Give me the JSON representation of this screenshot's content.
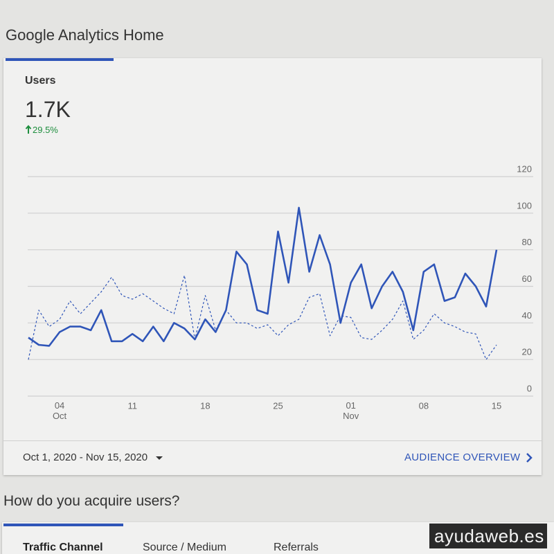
{
  "header": {
    "title": "Google Analytics Home"
  },
  "card": {
    "metric": "Users",
    "value": "1.7K",
    "change": "29.5%",
    "date_range": "Oct 1, 2020 - Nov 15, 2020",
    "link": "AUDIENCE OVERVIEW"
  },
  "chart_data": {
    "type": "line",
    "categories": [
      null,
      null,
      null,
      "04 Oct",
      null,
      null,
      null,
      null,
      null,
      null,
      "11",
      null,
      null,
      null,
      null,
      null,
      null,
      "18",
      null,
      null,
      null,
      null,
      null,
      null,
      "25",
      null,
      null,
      null,
      null,
      null,
      null,
      "01 Nov",
      null,
      null,
      null,
      null,
      null,
      null,
      "08",
      null,
      null,
      null,
      null,
      null,
      null,
      "15"
    ],
    "series": [
      {
        "color": "#2f55b8",
        "style": "solid",
        "values": [
          32,
          28,
          27.5,
          35,
          38,
          38,
          36,
          47,
          30,
          30,
          34,
          30,
          38,
          30,
          40,
          37,
          31,
          42,
          35,
          47,
          79,
          72,
          47,
          45,
          90,
          62,
          103,
          68,
          88,
          72,
          40,
          62,
          72,
          48,
          60,
          68,
          57,
          36,
          68,
          72,
          52,
          54,
          67,
          60,
          49,
          80
        ]
      },
      {
        "color": "#2f55b8",
        "style": "dashed",
        "values": [
          20,
          47,
          38,
          42,
          52,
          45,
          51,
          57,
          65,
          55,
          53,
          56,
          52,
          48,
          45,
          66,
          31,
          55,
          36,
          47,
          40,
          40,
          37,
          39,
          33,
          39,
          42,
          54,
          56,
          33,
          44,
          43,
          32,
          31,
          36,
          42,
          52,
          31,
          36,
          45,
          40,
          38,
          35,
          34,
          20,
          28
        ]
      }
    ],
    "ylim": [
      0,
      120
    ],
    "yticks": [
      0,
      20,
      40,
      60,
      80,
      100,
      120
    ],
    "grid": true
  },
  "section": {
    "title": "How do you acquire users?",
    "tabs": [
      "Traffic Channel",
      "Source / Medium",
      "Referrals"
    ]
  },
  "watermark": "ayudaweb.es"
}
